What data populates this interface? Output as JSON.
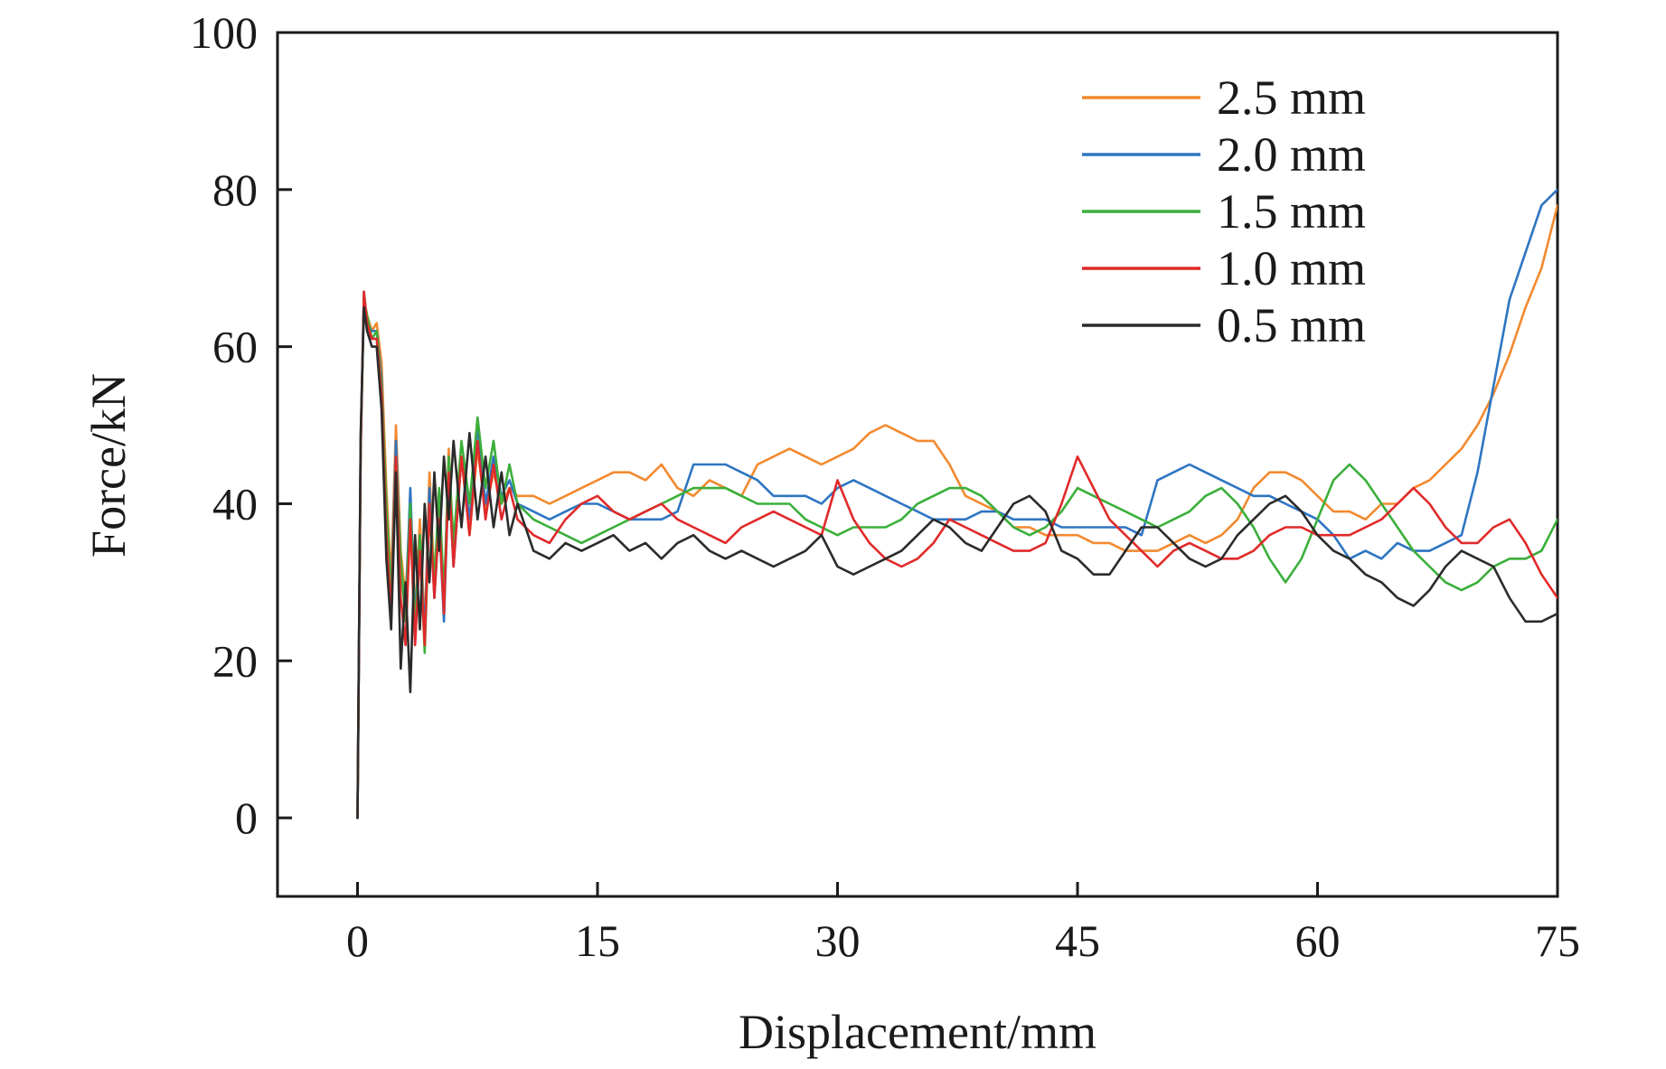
{
  "chart_data": {
    "type": "line",
    "title": "",
    "xlabel": "Displacement/mm",
    "ylabel": "Force/kN",
    "xlim": [
      -5,
      75
    ],
    "ylim": [
      -10,
      100
    ],
    "xticks": [
      0,
      15,
      30,
      45,
      60,
      75
    ],
    "yticks": [
      0,
      20,
      40,
      60,
      80,
      100
    ],
    "grid": false,
    "legend_position": "top-right",
    "series": [
      {
        "name": "2.5 mm",
        "color": "#F28A30",
        "x": [
          0,
          0.2,
          0.4,
          0.6,
          0.9,
          1.2,
          1.5,
          1.8,
          2.1,
          2.4,
          2.7,
          3.0,
          3.3,
          3.6,
          3.9,
          4.2,
          4.5,
          4.8,
          5.1,
          5.4,
          5.7,
          6.0,
          6.5,
          7.0,
          7.5,
          8.0,
          8.5,
          9.0,
          9.5,
          10,
          11,
          12,
          13,
          14,
          15,
          16,
          17,
          18,
          19,
          20,
          21,
          22,
          23,
          24,
          25,
          26,
          27,
          28,
          29,
          30,
          31,
          32,
          33,
          34,
          35,
          36,
          37,
          38,
          39,
          40,
          41,
          42,
          43,
          44,
          45,
          46,
          47,
          48,
          49,
          50,
          51,
          52,
          53,
          54,
          55,
          56,
          57,
          58,
          59,
          60,
          61,
          62,
          63,
          64,
          65,
          66,
          67,
          68,
          69,
          70,
          71,
          72,
          73,
          74,
          75
        ],
        "y": [
          0,
          48,
          66,
          64,
          62,
          63,
          58,
          42,
          30,
          50,
          34,
          28,
          40,
          26,
          38,
          24,
          44,
          30,
          40,
          26,
          47,
          33,
          46,
          36,
          47,
          39,
          44,
          40,
          42,
          41,
          41,
          40,
          41,
          42,
          43,
          44,
          44,
          43,
          45,
          42,
          41,
          43,
          42,
          41,
          45,
          46,
          47,
          46,
          45,
          46,
          47,
          49,
          50,
          49,
          48,
          48,
          45,
          41,
          40,
          39,
          37,
          37,
          36,
          36,
          36,
          35,
          35,
          34,
          34,
          34,
          35,
          36,
          35,
          36,
          38,
          42,
          44,
          44,
          43,
          41,
          39,
          39,
          38,
          40,
          40,
          42,
          43,
          45,
          47,
          50,
          54,
          59,
          65,
          70,
          78
        ]
      },
      {
        "name": "2.0 mm",
        "color": "#2E75C2",
        "x": [
          0,
          0.2,
          0.4,
          0.6,
          0.9,
          1.2,
          1.5,
          1.8,
          2.1,
          2.4,
          2.7,
          3.0,
          3.3,
          3.6,
          3.9,
          4.2,
          4.5,
          4.8,
          5.1,
          5.4,
          5.7,
          6.0,
          6.5,
          7.0,
          7.5,
          8.0,
          8.5,
          9.0,
          9.5,
          10,
          11,
          12,
          13,
          14,
          15,
          16,
          17,
          18,
          19,
          20,
          21,
          22,
          23,
          24,
          25,
          26,
          27,
          28,
          29,
          30,
          31,
          32,
          33,
          34,
          35,
          36,
          37,
          38,
          39,
          40,
          41,
          42,
          43,
          44,
          45,
          46,
          47,
          48,
          49,
          50,
          51,
          52,
          53,
          54,
          55,
          56,
          57,
          58,
          59,
          60,
          61,
          62,
          63,
          64,
          65,
          66,
          67,
          68,
          69,
          70,
          71,
          72,
          73,
          74,
          75
        ],
        "y": [
          0,
          48,
          67,
          63,
          62,
          62,
          56,
          38,
          28,
          48,
          32,
          26,
          42,
          25,
          36,
          23,
          42,
          28,
          38,
          25,
          44,
          32,
          46,
          38,
          50,
          40,
          46,
          41,
          43,
          40,
          39,
          38,
          39,
          40,
          40,
          39,
          38,
          38,
          38,
          39,
          45,
          45,
          45,
          44,
          43,
          41,
          41,
          41,
          40,
          42,
          43,
          42,
          41,
          40,
          39,
          38,
          38,
          38,
          39,
          39,
          38,
          38,
          38,
          37,
          37,
          37,
          37,
          37,
          36,
          43,
          44,
          45,
          44,
          43,
          42,
          41,
          41,
          40,
          39,
          38,
          36,
          33,
          34,
          33,
          35,
          34,
          34,
          35,
          36,
          44,
          55,
          66,
          72,
          78,
          80
        ]
      },
      {
        "name": "1.5 mm",
        "color": "#3BAF3B",
        "x": [
          0,
          0.2,
          0.4,
          0.6,
          0.9,
          1.2,
          1.5,
          1.8,
          2.1,
          2.4,
          2.7,
          3.0,
          3.3,
          3.6,
          3.9,
          4.2,
          4.5,
          4.8,
          5.1,
          5.4,
          5.7,
          6.0,
          6.5,
          7.0,
          7.5,
          8.0,
          8.5,
          9.0,
          9.5,
          10,
          11,
          12,
          13,
          14,
          15,
          16,
          17,
          18,
          19,
          20,
          21,
          22,
          23,
          24,
          25,
          26,
          27,
          28,
          29,
          30,
          31,
          32,
          33,
          34,
          35,
          36,
          37,
          38,
          39,
          40,
          41,
          42,
          43,
          44,
          45,
          46,
          47,
          48,
          49,
          50,
          51,
          52,
          53,
          54,
          55,
          56,
          57,
          58,
          59,
          60,
          61,
          62,
          63,
          64,
          65,
          66,
          67,
          68,
          69,
          70,
          71,
          72,
          73,
          74,
          75
        ],
        "y": [
          0,
          47,
          66,
          64,
          61,
          62,
          55,
          40,
          28,
          46,
          33,
          25,
          40,
          24,
          36,
          21,
          40,
          30,
          42,
          28,
          46,
          35,
          48,
          40,
          51,
          42,
          48,
          40,
          45,
          40,
          38,
          37,
          36,
          35,
          36,
          37,
          38,
          39,
          40,
          41,
          42,
          42,
          42,
          41,
          40,
          40,
          40,
          38,
          37,
          36,
          37,
          37,
          37,
          38,
          40,
          41,
          42,
          42,
          41,
          39,
          37,
          36,
          37,
          39,
          42,
          41,
          40,
          39,
          38,
          37,
          38,
          39,
          41,
          42,
          40,
          37,
          33,
          30,
          33,
          38,
          43,
          45,
          43,
          40,
          37,
          34,
          32,
          30,
          29,
          30,
          32,
          33,
          33,
          34,
          38
        ]
      },
      {
        "name": "1.0 mm",
        "color": "#E02A2A",
        "x": [
          0,
          0.2,
          0.4,
          0.6,
          0.9,
          1.2,
          1.5,
          1.8,
          2.1,
          2.4,
          2.7,
          3.0,
          3.3,
          3.6,
          3.9,
          4.2,
          4.5,
          4.8,
          5.1,
          5.4,
          5.7,
          6.0,
          6.5,
          7.0,
          7.5,
          8.0,
          8.5,
          9.0,
          9.5,
          10,
          11,
          12,
          13,
          14,
          15,
          16,
          17,
          18,
          19,
          20,
          21,
          22,
          23,
          24,
          25,
          26,
          27,
          28,
          29,
          30,
          31,
          32,
          33,
          34,
          35,
          36,
          37,
          38,
          39,
          40,
          41,
          42,
          43,
          44,
          45,
          46,
          47,
          48,
          49,
          50,
          51,
          52,
          53,
          54,
          55,
          56,
          57,
          58,
          59,
          60,
          61,
          62,
          63,
          64,
          65,
          66,
          67,
          68,
          69,
          70,
          71,
          72,
          73,
          74,
          75
        ],
        "y": [
          0,
          47,
          67,
          63,
          61,
          61,
          54,
          36,
          26,
          46,
          28,
          22,
          38,
          22,
          34,
          22,
          40,
          28,
          38,
          26,
          44,
          32,
          46,
          36,
          48,
          38,
          45,
          38,
          42,
          38,
          36,
          35,
          38,
          40,
          41,
          39,
          38,
          39,
          40,
          38,
          37,
          36,
          35,
          37,
          38,
          39,
          38,
          37,
          36,
          43,
          38,
          35,
          33,
          32,
          33,
          35,
          38,
          37,
          36,
          35,
          34,
          34,
          35,
          40,
          46,
          42,
          38,
          36,
          34,
          32,
          34,
          35,
          34,
          33,
          33,
          34,
          36,
          37,
          37,
          36,
          36,
          36,
          37,
          38,
          40,
          42,
          40,
          37,
          35,
          35,
          37,
          38,
          35,
          31,
          28
        ]
      },
      {
        "name": "0.5 mm",
        "color": "#2B2B2B",
        "x": [
          0,
          0.2,
          0.4,
          0.6,
          0.9,
          1.2,
          1.5,
          1.8,
          2.1,
          2.4,
          2.7,
          3.0,
          3.3,
          3.6,
          3.9,
          4.2,
          4.5,
          4.8,
          5.1,
          5.4,
          5.7,
          6.0,
          6.5,
          7.0,
          7.5,
          8.0,
          8.5,
          9.0,
          9.5,
          10,
          11,
          12,
          13,
          14,
          15,
          16,
          17,
          18,
          19,
          20,
          21,
          22,
          23,
          24,
          25,
          26,
          27,
          28,
          29,
          30,
          31,
          32,
          33,
          34,
          35,
          36,
          37,
          38,
          39,
          40,
          41,
          42,
          43,
          44,
          45,
          46,
          47,
          48,
          49,
          50,
          51,
          52,
          53,
          54,
          55,
          56,
          57,
          58,
          59,
          60,
          61,
          62,
          63,
          64,
          65,
          66,
          67,
          68,
          69,
          70,
          71,
          72,
          73,
          74,
          75
        ],
        "y": [
          0,
          49,
          65,
          62,
          60,
          60,
          52,
          33,
          24,
          44,
          19,
          30,
          16,
          36,
          24,
          40,
          30,
          44,
          34,
          46,
          38,
          48,
          37,
          49,
          38,
          46,
          37,
          44,
          36,
          40,
          34,
          33,
          35,
          34,
          35,
          36,
          34,
          35,
          33,
          35,
          36,
          34,
          33,
          34,
          33,
          32,
          33,
          34,
          36,
          32,
          31,
          32,
          33,
          34,
          36,
          38,
          37,
          35,
          34,
          37,
          40,
          41,
          39,
          34,
          33,
          31,
          31,
          34,
          37,
          37,
          35,
          33,
          32,
          33,
          36,
          38,
          40,
          41,
          39,
          36,
          34,
          33,
          31,
          30,
          28,
          27,
          29,
          32,
          34,
          33,
          32,
          28,
          25,
          25,
          26
        ]
      }
    ]
  }
}
